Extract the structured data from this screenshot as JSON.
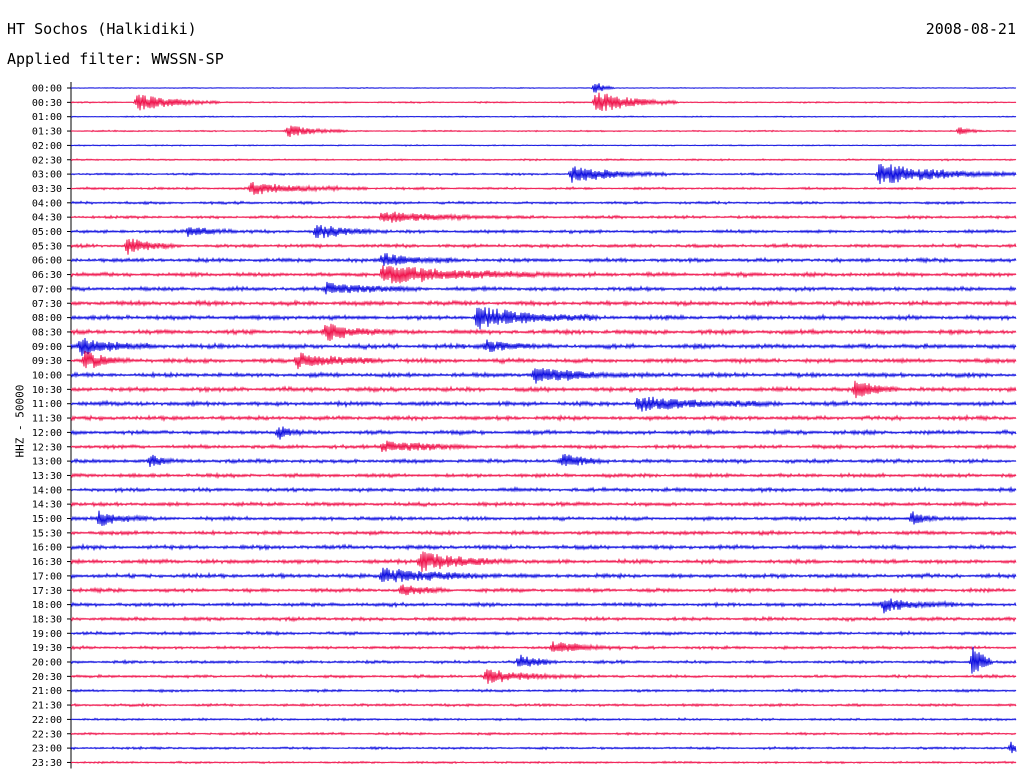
{
  "header": {
    "station": "HT Sochos (Halkidiki)",
    "date": "2008-08-21",
    "filter_label": "Applied filter:",
    "filter_value": "WWSSN-SP"
  },
  "colors": {
    "trace_a": "#1010e0",
    "trace_b": "#f0164e"
  },
  "chart_data": {
    "type": "line",
    "title": "HT Sochos (Halkidiki)",
    "subtitle": "Applied filter: WWSSN-SP",
    "ylabel": "HHZ - 50000",
    "xlabel": "",
    "grid": false,
    "rows": [
      "00:00",
      "00:30",
      "01:00",
      "01:30",
      "02:00",
      "02:30",
      "03:00",
      "03:30",
      "04:00",
      "04:30",
      "05:00",
      "05:30",
      "06:00",
      "06:30",
      "07:00",
      "07:30",
      "08:00",
      "08:30",
      "09:00",
      "09:30",
      "10:00",
      "10:30",
      "11:00",
      "11:30",
      "12:00",
      "12:30",
      "13:00",
      "13:30",
      "14:00",
      "14:30",
      "15:00",
      "15:30",
      "16:00",
      "16:30",
      "17:00",
      "17:30",
      "18:00",
      "18:30",
      "19:00",
      "19:30",
      "20:00",
      "20:30",
      "21:00",
      "21:30",
      "22:00",
      "22:30",
      "23:00",
      "23:30"
    ],
    "noise_level": [
      0.3,
      0.5,
      0.4,
      0.5,
      0.4,
      0.6,
      0.7,
      0.8,
      0.9,
      1.0,
      1.1,
      1.2,
      1.3,
      1.4,
      1.4,
      1.5,
      1.5,
      1.5,
      1.6,
      1.5,
      1.5,
      1.5,
      1.5,
      1.4,
      1.4,
      1.3,
      1.3,
      1.3,
      1.3,
      1.3,
      1.3,
      1.3,
      1.4,
      1.4,
      1.4,
      1.3,
      1.3,
      1.2,
      1.1,
      1.0,
      1.0,
      1.0,
      0.9,
      0.9,
      0.8,
      0.8,
      0.8,
      0.7
    ],
    "events": [
      {
        "row": "00:30",
        "t": 0.07,
        "amp": 9,
        "dur": 0.035
      },
      {
        "row": "00:30",
        "t": 0.555,
        "amp": 12,
        "dur": 0.035
      },
      {
        "row": "00:00",
        "t": 0.555,
        "amp": 7,
        "dur": 0.008
      },
      {
        "row": "01:30",
        "t": 0.23,
        "amp": 6,
        "dur": 0.025
      },
      {
        "row": "01:30",
        "t": 0.94,
        "amp": 4,
        "dur": 0.01
      },
      {
        "row": "03:00",
        "t": 0.53,
        "amp": 9,
        "dur": 0.04
      },
      {
        "row": "03:00",
        "t": 0.855,
        "amp": 11,
        "dur": 0.06
      },
      {
        "row": "03:30",
        "t": 0.19,
        "amp": 6,
        "dur": 0.05
      },
      {
        "row": "04:30",
        "t": 0.33,
        "amp": 6,
        "dur": 0.05
      },
      {
        "row": "05:00",
        "t": 0.125,
        "amp": 6,
        "dur": 0.02
      },
      {
        "row": "05:00",
        "t": 0.26,
        "amp": 7,
        "dur": 0.03
      },
      {
        "row": "05:30",
        "t": 0.06,
        "amp": 8,
        "dur": 0.02
      },
      {
        "row": "06:00",
        "t": 0.33,
        "amp": 7,
        "dur": 0.03
      },
      {
        "row": "06:30",
        "t": 0.33,
        "amp": 9,
        "dur": 0.08
      },
      {
        "row": "07:00",
        "t": 0.27,
        "amp": 6,
        "dur": 0.04
      },
      {
        "row": "08:00",
        "t": 0.43,
        "amp": 11,
        "dur": 0.05
      },
      {
        "row": "08:30",
        "t": 0.27,
        "amp": 8,
        "dur": 0.03
      },
      {
        "row": "09:00",
        "t": 0.01,
        "amp": 10,
        "dur": 0.03
      },
      {
        "row": "09:00",
        "t": 0.44,
        "amp": 6,
        "dur": 0.02
      },
      {
        "row": "09:30",
        "t": 0.015,
        "amp": 9,
        "dur": 0.02
      },
      {
        "row": "09:30",
        "t": 0.24,
        "amp": 7,
        "dur": 0.04
      },
      {
        "row": "10:00",
        "t": 0.49,
        "amp": 8,
        "dur": 0.04
      },
      {
        "row": "10:30",
        "t": 0.83,
        "amp": 10,
        "dur": 0.02
      },
      {
        "row": "11:00",
        "t": 0.6,
        "amp": 7,
        "dur": 0.06
      },
      {
        "row": "12:00",
        "t": 0.22,
        "amp": 7,
        "dur": 0.01
      },
      {
        "row": "12:30",
        "t": 0.33,
        "amp": 6,
        "dur": 0.04
      },
      {
        "row": "13:00",
        "t": 0.085,
        "amp": 7,
        "dur": 0.01
      },
      {
        "row": "13:00",
        "t": 0.52,
        "amp": 8,
        "dur": 0.02
      },
      {
        "row": "15:00",
        "t": 0.03,
        "amp": 8,
        "dur": 0.02
      },
      {
        "row": "15:00",
        "t": 0.89,
        "amp": 7,
        "dur": 0.01
      },
      {
        "row": "16:30",
        "t": 0.37,
        "amp": 10,
        "dur": 0.04
      },
      {
        "row": "17:00",
        "t": 0.33,
        "amp": 8,
        "dur": 0.05
      },
      {
        "row": "17:30",
        "t": 0.35,
        "amp": 6,
        "dur": 0.02
      },
      {
        "row": "18:00",
        "t": 0.86,
        "amp": 7,
        "dur": 0.03
      },
      {
        "row": "19:30",
        "t": 0.51,
        "amp": 6,
        "dur": 0.03
      },
      {
        "row": "20:00",
        "t": 0.475,
        "amp": 9,
        "dur": 0.015
      },
      {
        "row": "20:00",
        "t": 0.955,
        "amp": 24,
        "dur": 0.008
      },
      {
        "row": "20:30",
        "t": 0.44,
        "amp": 7,
        "dur": 0.04
      },
      {
        "row": "23:00",
        "t": 0.995,
        "amp": 8,
        "dur": 0.006
      }
    ]
  }
}
